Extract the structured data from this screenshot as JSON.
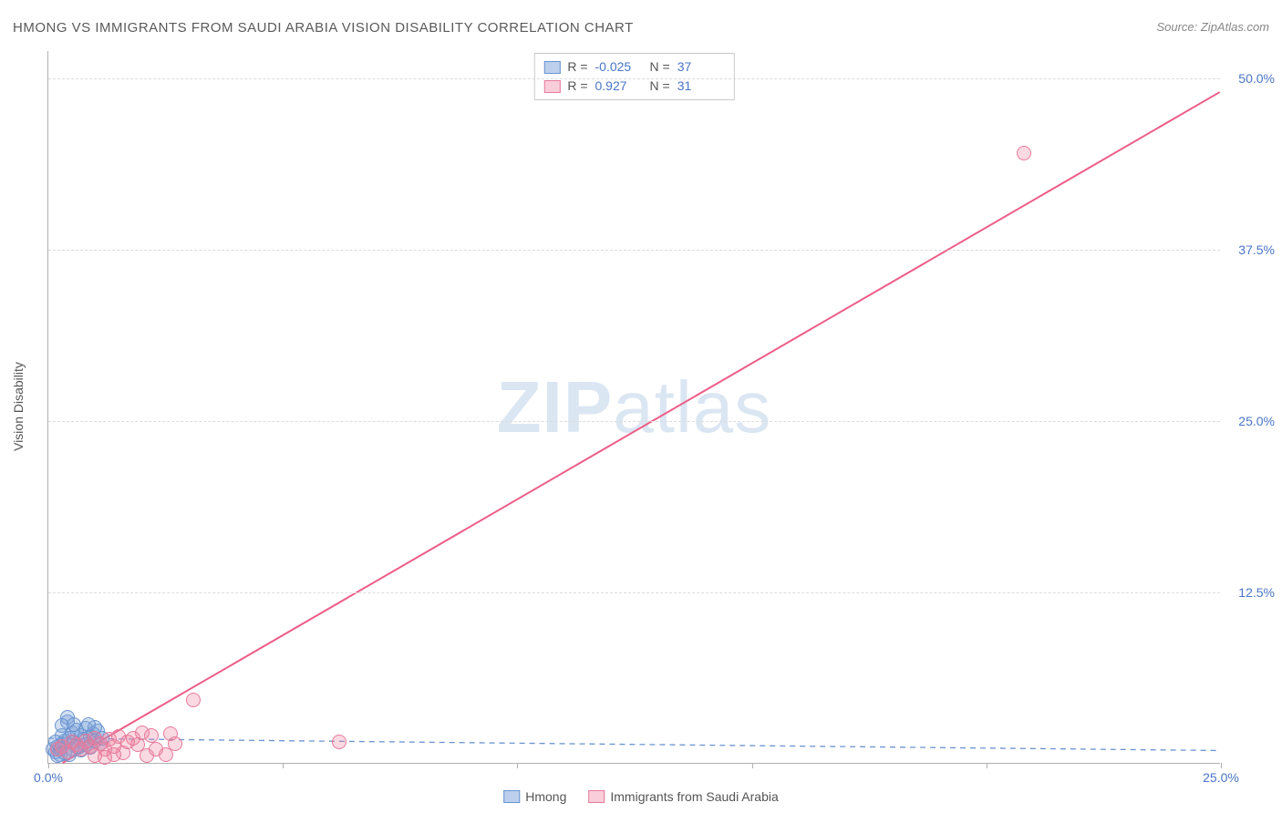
{
  "title": "HMONG VS IMMIGRANTS FROM SAUDI ARABIA VISION DISABILITY CORRELATION CHART",
  "source_text": "Source: ZipAtlas.com",
  "watermark": {
    "bold": "ZIP",
    "light": "atlas"
  },
  "chart": {
    "type": "scatter",
    "y_axis_label": "Vision Disability",
    "background_color": "#ffffff",
    "grid_color": "#dcdcdc",
    "axis_color": "#b0b0b0",
    "label_color": "#4a76c7",
    "x_domain": [
      0,
      25
    ],
    "y_domain": [
      0,
      52
    ],
    "y_ticks": [
      {
        "value": 12.5,
        "label": "12.5%"
      },
      {
        "value": 25.0,
        "label": "25.0%"
      },
      {
        "value": 37.5,
        "label": "37.5%"
      },
      {
        "value": 50.0,
        "label": "50.0%"
      }
    ],
    "x_ticks": [
      {
        "value": 0,
        "label": "0.0%"
      },
      {
        "value": 5,
        "label": ""
      },
      {
        "value": 10,
        "label": ""
      },
      {
        "value": 15,
        "label": ""
      },
      {
        "value": 20,
        "label": ""
      },
      {
        "value": 25,
        "label": "25.0%"
      }
    ],
    "series": [
      {
        "name": "Hmong",
        "color_fill": "rgba(122,162,219,0.35)",
        "color_stroke": "#6a93d0",
        "css_class": "blue",
        "marker_radius_px": 8,
        "R": "-0.025",
        "N": "37",
        "trend": {
          "x1": 0,
          "y1": 1.8,
          "x2": 25,
          "y2": 0.9,
          "dash": "6,5",
          "stroke": "#6a93d0",
          "width": 1.3
        },
        "points": [
          [
            0.1,
            1.0
          ],
          [
            0.2,
            1.2
          ],
          [
            0.15,
            0.8
          ],
          [
            0.3,
            1.4
          ],
          [
            0.25,
            1.0
          ],
          [
            0.35,
            1.6
          ],
          [
            0.4,
            3.0
          ],
          [
            0.4,
            3.3
          ],
          [
            0.3,
            2.0
          ],
          [
            0.45,
            1.8
          ],
          [
            0.5,
            2.2
          ],
          [
            0.55,
            1.5
          ],
          [
            0.6,
            2.4
          ],
          [
            0.6,
            1.2
          ],
          [
            0.7,
            2.0
          ],
          [
            0.75,
            1.7
          ],
          [
            0.8,
            2.5
          ],
          [
            0.8,
            1.3
          ],
          [
            0.9,
            1.9
          ],
          [
            0.95,
            2.1
          ],
          [
            1.0,
            1.6
          ],
          [
            1.05,
            2.3
          ],
          [
            1.1,
            1.4
          ],
          [
            0.2,
            0.5
          ],
          [
            0.25,
            0.6
          ],
          [
            0.35,
            0.7
          ],
          [
            0.5,
            1.0
          ],
          [
            0.65,
            1.1
          ],
          [
            0.7,
            0.9
          ],
          [
            0.9,
            1.1
          ],
          [
            1.0,
            2.6
          ],
          [
            1.15,
            1.8
          ],
          [
            0.15,
            1.5
          ],
          [
            0.3,
            2.7
          ],
          [
            0.55,
            2.8
          ],
          [
            0.45,
            0.6
          ],
          [
            0.85,
            2.8
          ]
        ]
      },
      {
        "name": "Immigrants from Saudi Arabia",
        "color_fill": "rgba(240,130,160,0.30)",
        "color_stroke": "#e67a9a",
        "css_class": "pink",
        "marker_radius_px": 8,
        "R": "0.927",
        "N": "31",
        "trend": {
          "x1": 0.3,
          "y1": 0,
          "x2": 25,
          "y2": 49.0,
          "dash": "",
          "stroke": "#ed5d87",
          "width": 2
        },
        "points": [
          [
            0.2,
            1.0
          ],
          [
            0.3,
            1.2
          ],
          [
            0.4,
            0.8
          ],
          [
            0.5,
            1.5
          ],
          [
            0.6,
            1.3
          ],
          [
            0.7,
            1.0
          ],
          [
            0.8,
            1.6
          ],
          [
            0.9,
            1.2
          ],
          [
            1.0,
            1.8
          ],
          [
            1.1,
            1.4
          ],
          [
            1.2,
            1.0
          ],
          [
            1.3,
            1.7
          ],
          [
            1.4,
            1.2
          ],
          [
            1.5,
            1.9
          ],
          [
            1.6,
            0.7
          ],
          [
            1.7,
            1.5
          ],
          [
            1.0,
            0.5
          ],
          [
            1.2,
            0.4
          ],
          [
            1.4,
            0.6
          ],
          [
            1.8,
            1.8
          ],
          [
            1.9,
            1.3
          ],
          [
            2.0,
            2.2
          ],
          [
            2.1,
            0.5
          ],
          [
            2.2,
            2.0
          ],
          [
            2.3,
            1.0
          ],
          [
            2.5,
            0.6
          ],
          [
            2.6,
            2.1
          ],
          [
            2.7,
            1.4
          ],
          [
            3.1,
            4.6
          ],
          [
            6.2,
            1.5
          ],
          [
            20.8,
            44.5
          ]
        ]
      }
    ],
    "legend_labels": [
      "Hmong",
      "Immigrants from Saudi Arabia"
    ]
  }
}
